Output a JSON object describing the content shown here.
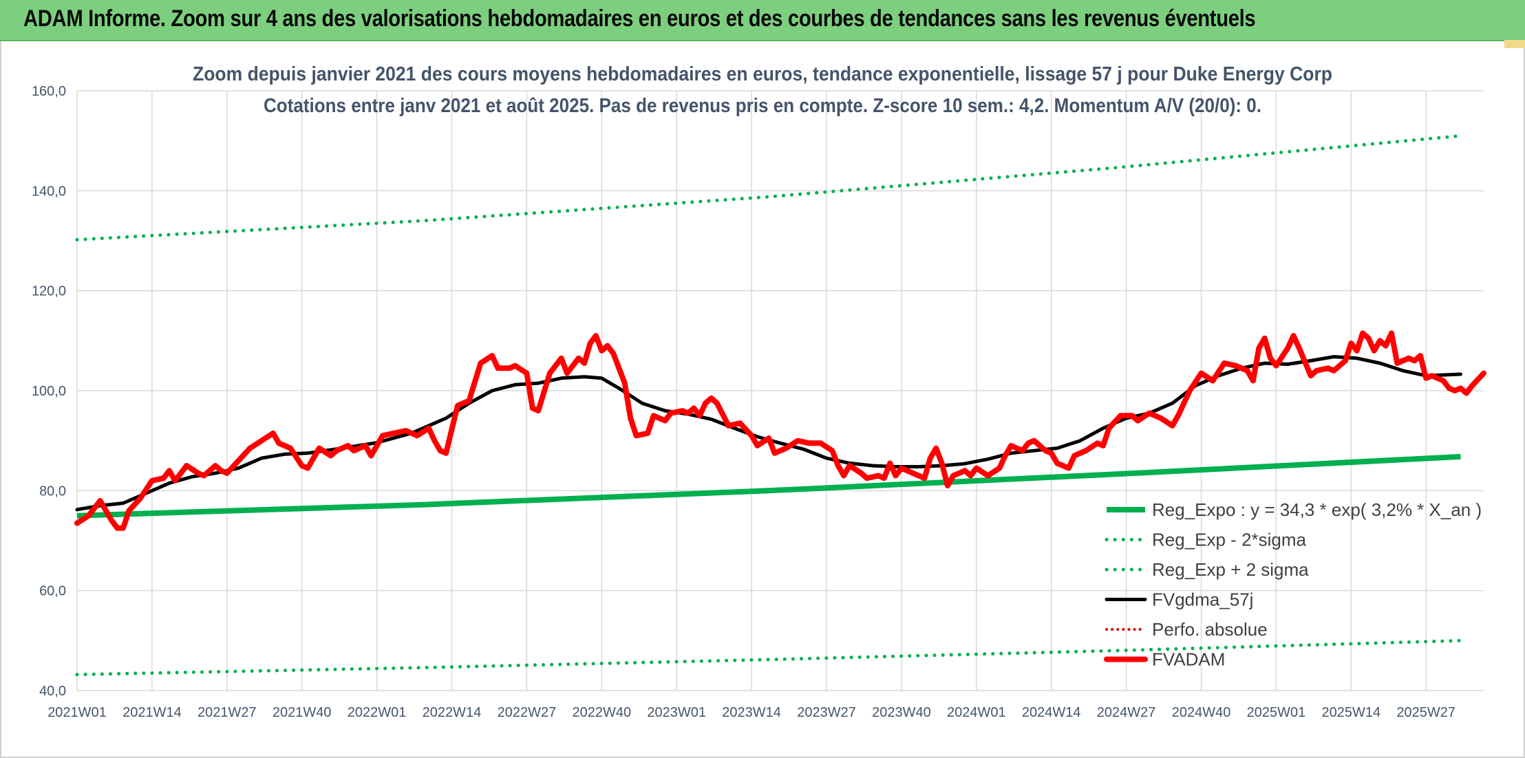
{
  "banner": {
    "title": "ADAM Informe. Zoom sur 4 ans des valorisations hebdomadaires en euros et des courbes de tendances sans les revenus éventuels"
  },
  "colors": {
    "banner_bg": "#7ccf7e",
    "reg_expo": "#00b050",
    "reg_band": "#00b050",
    "fvgdma": "#000000",
    "perfo": "#e00000",
    "fvadam": "#ff0000",
    "grid": "#d9d9d9",
    "text": "#44546a"
  },
  "chart_data": {
    "type": "line",
    "title": "Zoom depuis janvier 2021 des cours moyens hebdomadaires en euros, tendance exponentielle, lissage 57 j pour Duke Energy Corp",
    "subtitle": "Cotations entre janv 2021 et août 2025. Pas de revenus pris en compte. Z-score 10 sem.: 4,2. Momentum A/V (20/0): 0.",
    "ylim": [
      40,
      160
    ],
    "y_ticks": [
      "40,0",
      "60,0",
      "80,0",
      "100,0",
      "120,0",
      "140,0",
      "160,0"
    ],
    "x_ticks": [
      "2021W01",
      "2021W14",
      "2021W27",
      "2021W40",
      "2022W01",
      "2022W14",
      "2022W27",
      "2022W40",
      "2023W01",
      "2023W14",
      "2023W27",
      "2023W40",
      "2024W01",
      "2024W14",
      "2024W27",
      "2024W40",
      "2025W01",
      "2025W14",
      "2025W27"
    ],
    "grid": true,
    "legend_position": "bottom-right",
    "x_range_weeks": [
      0,
      240
    ],
    "series": [
      {
        "name": "Reg_Expo : y = 34,3 * exp( 3,2% *  X_an )",
        "style": "solid-thick",
        "points": [
          [
            0,
            75.0
          ],
          [
            60,
            77.2
          ],
          [
            120,
            80.0
          ],
          [
            180,
            83.3
          ],
          [
            240,
            86.8
          ]
        ]
      },
      {
        "name": "Reg_Exp - 2*sigma",
        "style": "dotted",
        "points": [
          [
            0,
            43.2
          ],
          [
            60,
            44.6
          ],
          [
            120,
            46.2
          ],
          [
            180,
            48.0
          ],
          [
            240,
            50.0
          ]
        ]
      },
      {
        "name": "Reg_Exp + 2 sigma",
        "style": "dotted",
        "points": [
          [
            0,
            130.2
          ],
          [
            60,
            134.0
          ],
          [
            120,
            138.8
          ],
          [
            180,
            144.6
          ],
          [
            240,
            151.0
          ]
        ]
      },
      {
        "name": "FVgdma_57j",
        "style": "solid",
        "points": [
          [
            0,
            76.2
          ],
          [
            4,
            77.0
          ],
          [
            8,
            77.5
          ],
          [
            12,
            79.5
          ],
          [
            16,
            81.5
          ],
          [
            20,
            82.8
          ],
          [
            24,
            83.5
          ],
          [
            28,
            84.5
          ],
          [
            32,
            86.5
          ],
          [
            36,
            87.3
          ],
          [
            40,
            87.5
          ],
          [
            46,
            88.5
          ],
          [
            52,
            89.6
          ],
          [
            58,
            91.5
          ],
          [
            64,
            94.5
          ],
          [
            68,
            97.5
          ],
          [
            72,
            100.0
          ],
          [
            76,
            101.2
          ],
          [
            80,
            101.5
          ],
          [
            84,
            102.5
          ],
          [
            88,
            102.8
          ],
          [
            91,
            102.5
          ],
          [
            94,
            100.5
          ],
          [
            98,
            97.5
          ],
          [
            102,
            96.0
          ],
          [
            106,
            95.3
          ],
          [
            110,
            94.3
          ],
          [
            114,
            92.5
          ],
          [
            118,
            90.8
          ],
          [
            122,
            89.5
          ],
          [
            126,
            88.3
          ],
          [
            130,
            86.5
          ],
          [
            134,
            85.5
          ],
          [
            138,
            85.0
          ],
          [
            142,
            84.8
          ],
          [
            146,
            84.8
          ],
          [
            150,
            85.0
          ],
          [
            154,
            85.4
          ],
          [
            158,
            86.3
          ],
          [
            162,
            87.5
          ],
          [
            166,
            88.0
          ],
          [
            170,
            88.5
          ],
          [
            174,
            90.0
          ],
          [
            178,
            92.5
          ],
          [
            182,
            94.5
          ],
          [
            186,
            95.5
          ],
          [
            190,
            97.5
          ],
          [
            194,
            101.0
          ],
          [
            198,
            103.0
          ],
          [
            202,
            104.5
          ],
          [
            206,
            105.5
          ],
          [
            210,
            105.3
          ],
          [
            214,
            106.0
          ],
          [
            218,
            106.8
          ],
          [
            222,
            106.5
          ],
          [
            226,
            105.5
          ],
          [
            230,
            104.0
          ],
          [
            234,
            103.0
          ],
          [
            238,
            103.2
          ],
          [
            240,
            103.3
          ]
        ]
      },
      {
        "name": "Perfo. absolue",
        "style": "dotted",
        "points": []
      },
      {
        "name": "FVADAM",
        "style": "solid-thick",
        "points": [
          [
            0,
            73.5
          ],
          [
            2,
            75.0
          ],
          [
            4,
            78.0
          ],
          [
            6,
            74.0
          ],
          [
            7,
            72.5
          ],
          [
            8,
            72.5
          ],
          [
            9,
            76.0
          ],
          [
            11,
            78.5
          ],
          [
            13,
            82.0
          ],
          [
            15,
            82.5
          ],
          [
            16,
            84.0
          ],
          [
            17,
            82.0
          ],
          [
            19,
            85.0
          ],
          [
            21,
            83.5
          ],
          [
            22,
            83.0
          ],
          [
            24,
            85.0
          ],
          [
            25,
            84.0
          ],
          [
            26,
            83.5
          ],
          [
            28,
            86.0
          ],
          [
            30,
            88.5
          ],
          [
            32,
            90.0
          ],
          [
            34,
            91.5
          ],
          [
            35,
            89.5
          ],
          [
            37,
            88.5
          ],
          [
            39,
            85.0
          ],
          [
            40,
            84.5
          ],
          [
            42,
            88.5
          ],
          [
            44,
            87.0
          ],
          [
            45,
            88.0
          ],
          [
            47,
            89.0
          ],
          [
            48,
            88.0
          ],
          [
            50,
            89.0
          ],
          [
            51,
            87.0
          ],
          [
            53,
            91.0
          ],
          [
            55,
            91.5
          ],
          [
            57,
            92.0
          ],
          [
            59,
            91.0
          ],
          [
            61,
            92.5
          ],
          [
            62,
            90.0
          ],
          [
            63,
            88.0
          ],
          [
            64,
            87.5
          ],
          [
            66,
            97.0
          ],
          [
            68,
            98.0
          ],
          [
            70,
            105.5
          ],
          [
            72,
            107.0
          ],
          [
            73,
            104.5
          ],
          [
            75,
            104.5
          ],
          [
            76,
            105.0
          ],
          [
            78,
            103.5
          ],
          [
            79,
            96.5
          ],
          [
            80,
            96.0
          ],
          [
            82,
            103.5
          ],
          [
            84,
            106.5
          ],
          [
            85,
            103.5
          ],
          [
            87,
            106.5
          ],
          [
            88,
            105.5
          ],
          [
            89,
            109.5
          ],
          [
            90,
            111.0
          ],
          [
            91,
            108.0
          ],
          [
            92,
            109.0
          ],
          [
            93,
            107.5
          ],
          [
            95,
            101.5
          ],
          [
            96,
            94.5
          ],
          [
            97,
            91.0
          ],
          [
            99,
            91.5
          ],
          [
            100,
            95.0
          ],
          [
            102,
            94.0
          ],
          [
            103,
            95.5
          ],
          [
            105,
            96.0
          ],
          [
            106,
            95.5
          ],
          [
            107,
            96.5
          ],
          [
            108,
            95.0
          ],
          [
            109,
            97.5
          ],
          [
            110,
            98.5
          ],
          [
            111,
            97.5
          ],
          [
            113,
            93.0
          ],
          [
            115,
            93.5
          ],
          [
            117,
            91.0
          ],
          [
            118,
            89.0
          ],
          [
            120,
            90.5
          ],
          [
            121,
            87.5
          ],
          [
            123,
            88.5
          ],
          [
            125,
            90.0
          ],
          [
            127,
            89.5
          ],
          [
            129,
            89.5
          ],
          [
            131,
            88.0
          ],
          [
            132,
            85.0
          ],
          [
            133,
            83.0
          ],
          [
            134,
            85.0
          ],
          [
            136,
            83.5
          ],
          [
            137,
            82.5
          ],
          [
            139,
            83.0
          ],
          [
            140,
            82.5
          ],
          [
            141,
            85.5
          ],
          [
            142,
            83.0
          ],
          [
            143,
            84.5
          ],
          [
            145,
            83.5
          ],
          [
            147,
            82.5
          ],
          [
            148,
            86.5
          ],
          [
            149,
            88.5
          ],
          [
            150,
            85.5
          ],
          [
            151,
            81.0
          ],
          [
            152,
            83.0
          ],
          [
            154,
            84.0
          ],
          [
            155,
            83.0
          ],
          [
            156,
            84.5
          ],
          [
            158,
            83.0
          ],
          [
            160,
            84.5
          ],
          [
            161,
            87.0
          ],
          [
            162,
            89.0
          ],
          [
            164,
            88.0
          ],
          [
            165,
            89.5
          ],
          [
            166,
            90.0
          ],
          [
            168,
            88.0
          ],
          [
            169,
            87.5
          ],
          [
            170,
            85.5
          ],
          [
            172,
            84.5
          ],
          [
            173,
            87.0
          ],
          [
            175,
            88.0
          ],
          [
            177,
            89.5
          ],
          [
            178,
            89.0
          ],
          [
            179,
            92.5
          ],
          [
            181,
            95.0
          ],
          [
            183,
            95.0
          ],
          [
            184,
            94.0
          ],
          [
            186,
            95.5
          ],
          [
            188,
            94.5
          ],
          [
            190,
            93.0
          ],
          [
            191,
            95.0
          ],
          [
            193,
            100.0
          ],
          [
            195,
            103.5
          ],
          [
            197,
            102.0
          ],
          [
            199,
            105.5
          ],
          [
            201,
            105.0
          ],
          [
            203,
            104.0
          ],
          [
            204,
            102.0
          ],
          [
            205,
            108.5
          ],
          [
            206,
            110.5
          ],
          [
            207,
            106.5
          ],
          [
            208,
            105.0
          ],
          [
            210,
            108.5
          ],
          [
            211,
            111.0
          ],
          [
            212,
            108.5
          ],
          [
            214,
            103.0
          ],
          [
            215,
            104.0
          ],
          [
            217,
            104.5
          ],
          [
            218,
            104.0
          ],
          [
            220,
            106.0
          ],
          [
            221,
            109.5
          ],
          [
            222,
            108.0
          ],
          [
            223,
            111.5
          ],
          [
            224,
            110.5
          ],
          [
            225,
            108.0
          ],
          [
            226,
            110.0
          ],
          [
            227,
            109.0
          ],
          [
            228,
            111.5
          ],
          [
            229,
            105.5
          ],
          [
            231,
            106.5
          ],
          [
            232,
            106.0
          ],
          [
            233,
            107.0
          ],
          [
            234,
            102.5
          ],
          [
            235,
            103.0
          ],
          [
            237,
            102.0
          ],
          [
            238,
            100.5
          ],
          [
            239,
            100.0
          ],
          [
            240,
            100.5
          ],
          [
            241,
            99.5
          ],
          [
            242,
            101.0
          ],
          [
            244,
            103.5
          ]
        ]
      }
    ]
  }
}
